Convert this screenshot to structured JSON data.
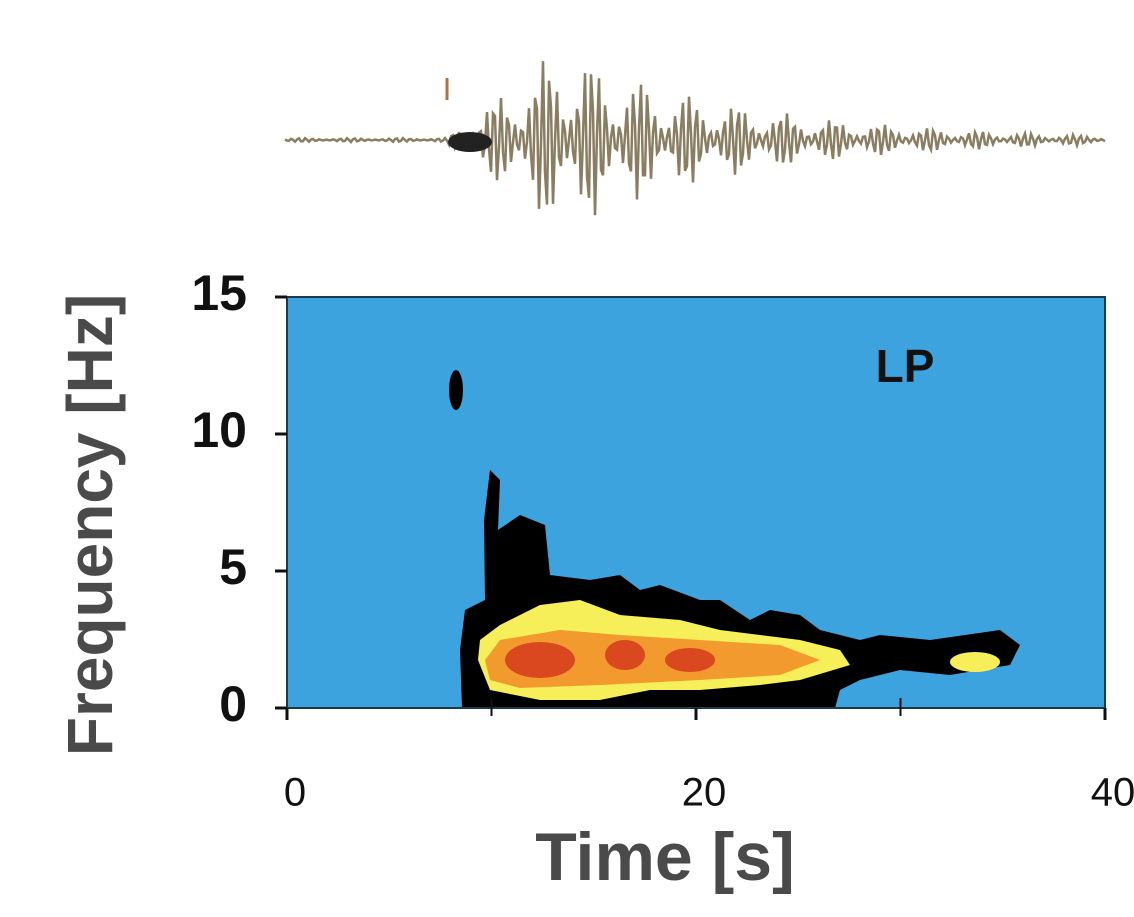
{
  "chart_data": {
    "type": "spectrogram",
    "xlabel": "Time [s]",
    "ylabel": "Frequency [Hz]",
    "annotation": "LP",
    "xlim": [
      0,
      40
    ],
    "xticks": [
      0,
      20,
      40
    ],
    "xminorticks": [
      10,
      30
    ],
    "ylim": [
      0,
      15
    ],
    "yticks": [
      0,
      5,
      10,
      15
    ],
    "background_color": "#3da3de"
  }
}
